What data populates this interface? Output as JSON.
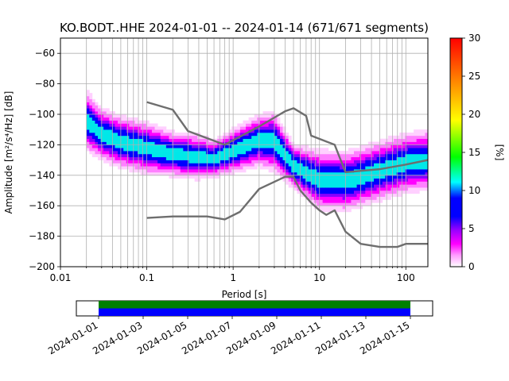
{
  "chart_data": [
    {
      "type": "heatmap",
      "title": "KO.BODT..HHE   2024-01-01 -- 2024-01-14  (671/671 segments)",
      "xlabel": "Period [s]",
      "ylabel": "Amplitude [m²/s⁴/Hz] [dB]",
      "x_scale": "log",
      "xlim": [
        0.01,
        180
      ],
      "ylim": [
        -200,
        -50
      ],
      "x_ticks": [
        {
          "value": 0.01,
          "label": "0.01"
        },
        {
          "value": 0.1,
          "label": "0.1"
        },
        {
          "value": 1,
          "label": "1"
        },
        {
          "value": 10,
          "label": "10"
        },
        {
          "value": 100,
          "label": "100"
        }
      ],
      "y_ticks": [
        -200,
        -180,
        -160,
        -140,
        -120,
        -100,
        -80,
        -60
      ],
      "grid": true,
      "colorbar": {
        "label": "[%]",
        "range": [
          0,
          30
        ],
        "ticks": [
          0,
          5,
          10,
          15,
          20,
          25,
          30
        ],
        "colormap": "pqlx"
      },
      "density_band": [
        {
          "period": 0.02,
          "mode": -104,
          "spread": 8
        },
        {
          "period": 0.03,
          "mode": -113,
          "spread": 7
        },
        {
          "period": 0.05,
          "mode": -118,
          "spread": 7
        },
        {
          "period": 0.1,
          "mode": -122,
          "spread": 7
        },
        {
          "period": 0.2,
          "mode": -126,
          "spread": 6
        },
        {
          "period": 0.4,
          "mode": -128,
          "spread": 6
        },
        {
          "period": 0.6,
          "mode": -129,
          "spread": 5
        },
        {
          "period": 1,
          "mode": -124,
          "spread": 6
        },
        {
          "period": 2,
          "mode": -117,
          "spread": 7
        },
        {
          "period": 3,
          "mode": -118,
          "spread": 8
        },
        {
          "period": 5,
          "mode": -134,
          "spread": 6
        },
        {
          "period": 10,
          "mode": -143,
          "spread": 8
        },
        {
          "period": 20,
          "mode": -144,
          "spread": 8
        },
        {
          "period": 50,
          "mode": -137,
          "spread": 8
        },
        {
          "period": 100,
          "mode": -132,
          "spread": 8
        },
        {
          "period": 180,
          "mode": -130,
          "spread": 8
        }
      ],
      "series": [
        {
          "name": "",
          "x": [
            0.1,
            0.2,
            0.3,
            0.8,
            1,
            2,
            4,
            5,
            7,
            8,
            15,
            20,
            50,
            100,
            180
          ],
          "y": [
            -92,
            -97,
            -111,
            -120,
            -117,
            -108,
            -98,
            -96,
            -101,
            -114,
            -120,
            -138,
            -136,
            -133,
            -130
          ]
        },
        {
          "name": "",
          "x": [
            0.1,
            0.2,
            0.5,
            0.8,
            1.2,
            2,
            4,
            5,
            6,
            8,
            10,
            12,
            15,
            20,
            30,
            50,
            80,
            100,
            180
          ],
          "y": [
            -168,
            -167,
            -167,
            -169,
            -164,
            -149,
            -141,
            -141,
            -150,
            -158,
            -163,
            -166,
            -163,
            -177,
            -185,
            -187,
            -187,
            -185,
            -185
          ]
        }
      ]
    },
    {
      "type": "bar",
      "title": "",
      "x_type": "date",
      "xlim": [
        "2023-12-31T00:00",
        "2024-01-16T00:00"
      ],
      "x_ticks": [
        "2024-01-01",
        "2024-01-03",
        "2024-01-05",
        "2024-01-07",
        "2024-01-09",
        "2024-01-11",
        "2024-01-13",
        "2024-01-15"
      ],
      "coverage": [
        {
          "start": "2024-01-01T00:00",
          "end": "2024-01-15T00:00",
          "color": "#008000"
        },
        {
          "start": "2024-01-01T00:00",
          "end": "2024-01-15T00:00",
          "color": "#0000ff"
        }
      ]
    }
  ]
}
